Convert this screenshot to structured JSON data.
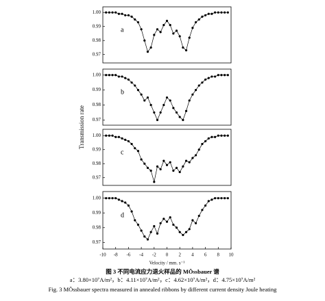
{
  "chart_data": [
    {
      "type": "line",
      "label": "a",
      "ylabel": "Transmission rate",
      "xlim": [
        -10,
        10
      ],
      "ylim": [
        0.964,
        1.004
      ],
      "yticks": [
        {
          "value": 1.0,
          "label": "1.00"
        },
        0.99,
        0.98,
        0.97
      ],
      "x": [
        -9.5,
        -9,
        -8.5,
        -8,
        -7.5,
        -7,
        -6.5,
        -6,
        -5.5,
        -5,
        -4.5,
        -4,
        -3.5,
        -3,
        -2.5,
        -2,
        -1.5,
        -1,
        -0.5,
        0,
        0.5,
        1,
        1.5,
        2,
        2.5,
        3,
        3.5,
        4,
        4.5,
        5,
        5.5,
        6,
        6.5,
        7,
        7.5,
        8,
        8.5,
        9,
        9.5
      ],
      "series": [
        {
          "color": "#000000",
          "values": [
            1.0,
            1.0,
            1.0,
            1.0,
            0.999,
            0.999,
            0.998,
            0.998,
            0.997,
            0.995,
            0.993,
            0.988,
            0.98,
            0.972,
            0.975,
            0.984,
            0.988,
            0.986,
            0.991,
            0.994,
            0.991,
            0.985,
            0.987,
            0.983,
            0.975,
            0.973,
            0.982,
            0.989,
            0.993,
            0.995,
            0.997,
            0.998,
            0.999,
            0.999,
            1.0,
            1.0,
            1.0,
            1.0,
            1.0
          ]
        }
      ]
    },
    {
      "type": "line",
      "label": "b",
      "xlim": [
        -10,
        10
      ],
      "ylim": [
        0.9665,
        1.004
      ],
      "yticks": [
        {
          "value": 1.0,
          "label": "1.00"
        },
        0.99,
        0.98,
        0.97
      ],
      "x": [
        -9.5,
        -9,
        -8.5,
        -8,
        -7.5,
        -7,
        -6.5,
        -6,
        -5.5,
        -5,
        -4.5,
        -4,
        -3.5,
        -3,
        -2.5,
        -2,
        -1.5,
        -1,
        -0.5,
        0,
        0.5,
        1,
        1.5,
        2,
        2.5,
        3,
        3.5,
        4,
        4.5,
        5,
        5.5,
        6,
        6.5,
        7,
        7.5,
        8,
        8.5,
        9,
        9.5
      ],
      "series": [
        {
          "color": "#000000",
          "values": [
            1.0,
            1.0,
            1.0,
            1.0,
            0.999,
            0.999,
            0.998,
            0.997,
            0.995,
            0.993,
            0.99,
            0.987,
            0.983,
            0.985,
            0.98,
            0.975,
            0.97,
            0.975,
            0.98,
            0.985,
            0.983,
            0.978,
            0.975,
            0.972,
            0.97,
            0.976,
            0.983,
            0.987,
            0.99,
            0.993,
            0.995,
            0.997,
            0.998,
            0.999,
            0.999,
            1.0,
            1.0,
            1.0,
            1.0
          ]
        }
      ]
    },
    {
      "type": "line",
      "label": "c",
      "xlim": [
        -10,
        10
      ],
      "ylim": [
        0.9645,
        1.0045
      ],
      "yticks": [
        {
          "value": 1.0,
          "label": "1.00"
        },
        0.99,
        0.98,
        0.97
      ],
      "x": [
        -9.5,
        -9,
        -8.5,
        -8,
        -7.5,
        -7,
        -6.5,
        -6,
        -5.5,
        -5,
        -4.5,
        -4,
        -3.5,
        -3,
        -2.5,
        -2,
        -1.5,
        -1,
        -0.5,
        0,
        0.5,
        1,
        1.5,
        2,
        2.5,
        3,
        3.5,
        4,
        4.5,
        5,
        5.5,
        6,
        6.5,
        7,
        7.5,
        8,
        8.5,
        9,
        9.5
      ],
      "series": [
        {
          "color": "#000000",
          "values": [
            1.0,
            1.0,
            1.0,
            0.999,
            0.999,
            0.998,
            0.997,
            0.996,
            0.994,
            0.991,
            0.989,
            0.983,
            0.98,
            0.977,
            0.975,
            0.967,
            0.978,
            0.976,
            0.982,
            0.979,
            0.981,
            0.975,
            0.977,
            0.974,
            0.978,
            0.982,
            0.981,
            0.984,
            0.986,
            0.99,
            0.994,
            0.996,
            0.998,
            0.999,
            0.999,
            1.0,
            1.0,
            1.0,
            1.0
          ]
        }
      ]
    },
    {
      "type": "line",
      "label": "d",
      "xlim": [
        -10,
        10
      ],
      "ylim": [
        0.9655,
        1.0045
      ],
      "yticks": [
        {
          "value": 1.0,
          "label": "1.00"
        },
        0.99,
        0.98,
        0.97
      ],
      "xticks": [
        -10,
        -8,
        -6,
        -4,
        -2,
        0,
        2,
        4,
        6,
        8,
        10
      ],
      "xlabel": "Velocity / mm. s⁻¹",
      "x": [
        -9.5,
        -9,
        -8.5,
        -8,
        -7.5,
        -7,
        -6.5,
        -6,
        -5.5,
        -5,
        -4.5,
        -4,
        -3.5,
        -3,
        -2.5,
        -2,
        -1.5,
        -1,
        -0.5,
        0,
        0.5,
        1,
        1.5,
        2,
        2.5,
        3,
        3.5,
        4,
        4.5,
        5,
        5.5,
        6,
        6.5,
        7,
        7.5,
        8,
        8.5,
        9,
        9.5
      ],
      "series": [
        {
          "color": "#000000",
          "values": [
            1.0,
            1.0,
            1.0,
            1.0,
            0.999,
            0.998,
            0.997,
            0.995,
            0.991,
            0.985,
            0.982,
            0.978,
            0.974,
            0.972,
            0.977,
            0.981,
            0.976,
            0.983,
            0.986,
            0.984,
            0.987,
            0.982,
            0.98,
            0.977,
            0.975,
            0.977,
            0.979,
            0.985,
            0.983,
            0.988,
            0.992,
            0.995,
            0.998,
            0.999,
            1.0,
            1.0,
            1.0,
            1.0,
            1.0
          ]
        }
      ]
    }
  ],
  "caption": [
    "图 3  不同电流应力退火样品的 MÖssbauer 谱",
    "a：3.80×10⁷A/m²，b：4.11×10⁷A/m²，c：4.62×10⁷A/m²，d：4.75×10⁷A/m²",
    "Fig. 3  MÖssbauer spectra measured in annealed ribbons by different current density Joule heating"
  ]
}
